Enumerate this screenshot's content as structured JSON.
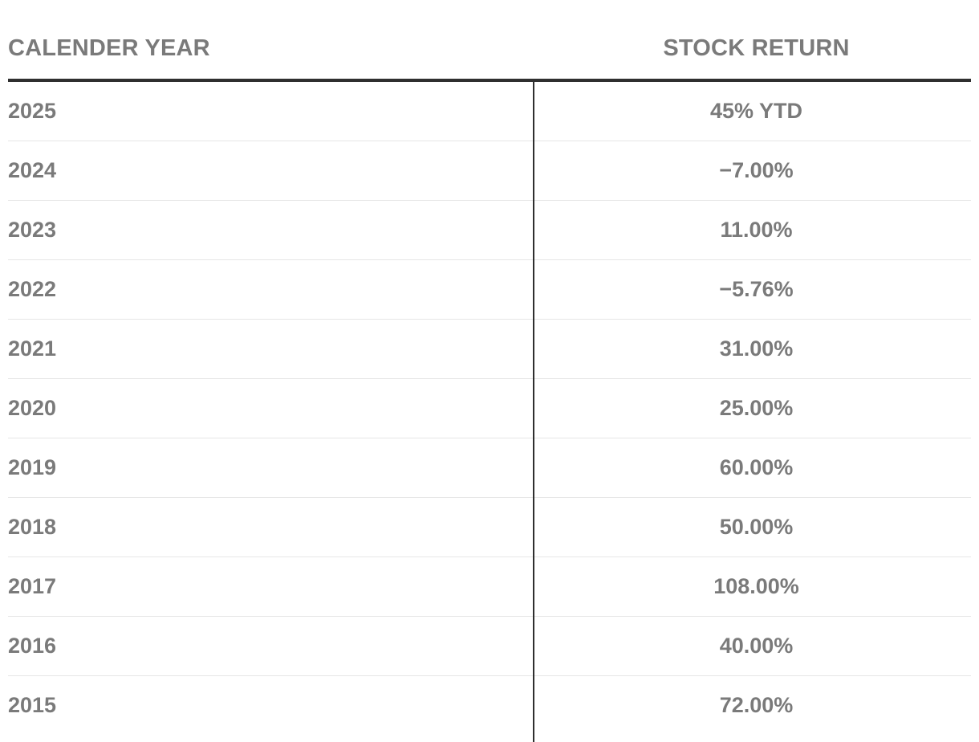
{
  "chart_data": {
    "type": "table",
    "columns": [
      "CALENDER YEAR",
      "STOCK RETURN"
    ],
    "rows": [
      {
        "year": "2025",
        "return": "45% YTD"
      },
      {
        "year": "2024",
        "return": "−7.00%"
      },
      {
        "year": "2023",
        "return": "11.00%"
      },
      {
        "year": "2022",
        "return": "−5.76%"
      },
      {
        "year": "2021",
        "return": "31.00%"
      },
      {
        "year": "2020",
        "return": "25.00%"
      },
      {
        "year": "2019",
        "return": "60.00%"
      },
      {
        "year": "2018",
        "return": "50.00%"
      },
      {
        "year": "2017",
        "return": "108.00%"
      },
      {
        "year": "2016",
        "return": "40.00%"
      },
      {
        "year": "2015",
        "return": "72.00%"
      }
    ]
  },
  "colors": {
    "text": "#7a7a7a",
    "rule": "#2f2f2f",
    "row_divider": "#e6e6e6",
    "background": "#ffffff"
  }
}
